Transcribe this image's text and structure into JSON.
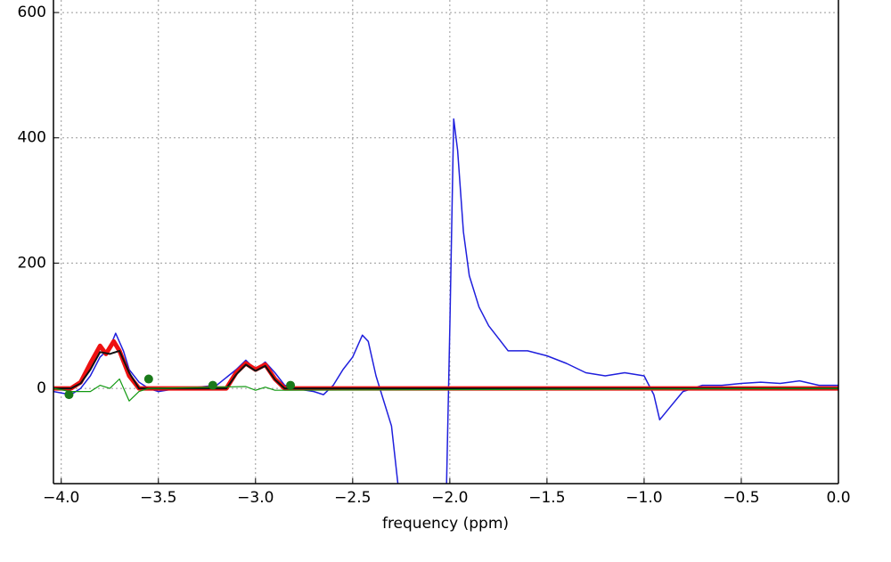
{
  "chart_data": {
    "type": "line",
    "xlabel": "frequency (ppm)",
    "xlim": [
      -4.04,
      0
    ],
    "ylim": [
      -152,
      620
    ],
    "xticks": [
      {
        "value": -4.0,
        "label": "−4.0"
      },
      {
        "value": -3.5,
        "label": "−3.5"
      },
      {
        "value": -3.0,
        "label": "−3.0"
      },
      {
        "value": -2.5,
        "label": "−2.5"
      },
      {
        "value": -2.0,
        "label": "−2.0"
      },
      {
        "value": -1.5,
        "label": "−1.5"
      },
      {
        "value": -1.0,
        "label": "−1.0"
      },
      {
        "value": -0.5,
        "label": "−0.5"
      },
      {
        "value": 0,
        "label": "0.0"
      }
    ],
    "yticks": [
      0,
      200,
      400,
      600
    ],
    "grid": true,
    "series": [
      {
        "color": "#1f1fdd",
        "width": 1.5,
        "x": [
          -4.04,
          -3.95,
          -3.9,
          -3.85,
          -3.8,
          -3.75,
          -3.72,
          -3.68,
          -3.65,
          -3.6,
          -3.55,
          -3.5,
          -3.4,
          -3.3,
          -3.2,
          -3.1,
          -3.05,
          -3.0,
          -2.95,
          -2.9,
          -2.85,
          -2.8,
          -2.7,
          -2.65,
          -2.6,
          -2.55,
          -2.5,
          -2.45,
          -2.42,
          -2.38,
          -2.35,
          -2.3,
          -2.25,
          -2.02,
          -2.0,
          -1.98,
          -1.96,
          -1.93,
          -1.9,
          -1.85,
          -1.8,
          -1.75,
          -1.7,
          -1.6,
          -1.5,
          -1.4,
          -1.3,
          -1.2,
          -1.1,
          -1.0,
          -0.95,
          -0.92,
          -0.88,
          -0.8,
          -0.75,
          -0.7,
          -0.6,
          -0.5,
          -0.4,
          -0.3,
          -0.2,
          -0.1,
          0
        ],
        "values": [
          -5,
          -10,
          0,
          20,
          50,
          65,
          88,
          60,
          30,
          10,
          0,
          -5,
          0,
          2,
          5,
          30,
          45,
          30,
          42,
          25,
          5,
          0,
          -5,
          -10,
          5,
          30,
          50,
          85,
          75,
          20,
          -10,
          -60,
          -200,
          -200,
          100,
          430,
          380,
          250,
          180,
          130,
          100,
          80,
          60,
          60,
          52,
          40,
          25,
          20,
          25,
          20,
          -10,
          -50,
          -35,
          -5,
          0,
          5,
          5,
          8,
          10,
          8,
          12,
          5,
          5
        ]
      },
      {
        "color": "#ee1111",
        "width": 5,
        "x": [
          -4.04,
          -3.95,
          -3.9,
          -3.85,
          -3.8,
          -3.77,
          -3.73,
          -3.7,
          -3.65,
          -3.6,
          -3.15,
          -3.1,
          -3.05,
          -3.0,
          -2.95,
          -2.9,
          -2.85,
          0
        ],
        "values": [
          0,
          0,
          10,
          40,
          68,
          55,
          75,
          60,
          20,
          0,
          0,
          25,
          40,
          30,
          38,
          15,
          0,
          0
        ]
      },
      {
        "color": "#111111",
        "width": 2,
        "x": [
          -4.04,
          -3.95,
          -3.9,
          -3.85,
          -3.8,
          -3.75,
          -3.7,
          -3.65,
          -3.6,
          -3.15,
          -3.1,
          -3.05,
          -3.0,
          -2.95,
          -2.9,
          -2.85,
          0
        ],
        "values": [
          0,
          0,
          8,
          30,
          58,
          55,
          60,
          25,
          0,
          0,
          22,
          38,
          28,
          36,
          14,
          0,
          0
        ]
      },
      {
        "color": "#119911",
        "width": 1.2,
        "x": [
          -4.04,
          -3.95,
          -3.85,
          -3.8,
          -3.75,
          -3.7,
          -3.65,
          -3.6,
          -3.55,
          -3.05,
          -3.0,
          -2.95,
          -2.9,
          0
        ],
        "values": [
          0,
          -5,
          -5,
          5,
          0,
          15,
          -20,
          -5,
          0,
          3,
          -3,
          2,
          -3,
          0
        ]
      }
    ],
    "points": {
      "color": "#1a7a1a",
      "x": [
        -3.96,
        -3.55,
        -3.22,
        -2.82
      ],
      "values": [
        -10,
        15,
        5,
        5
      ]
    }
  }
}
